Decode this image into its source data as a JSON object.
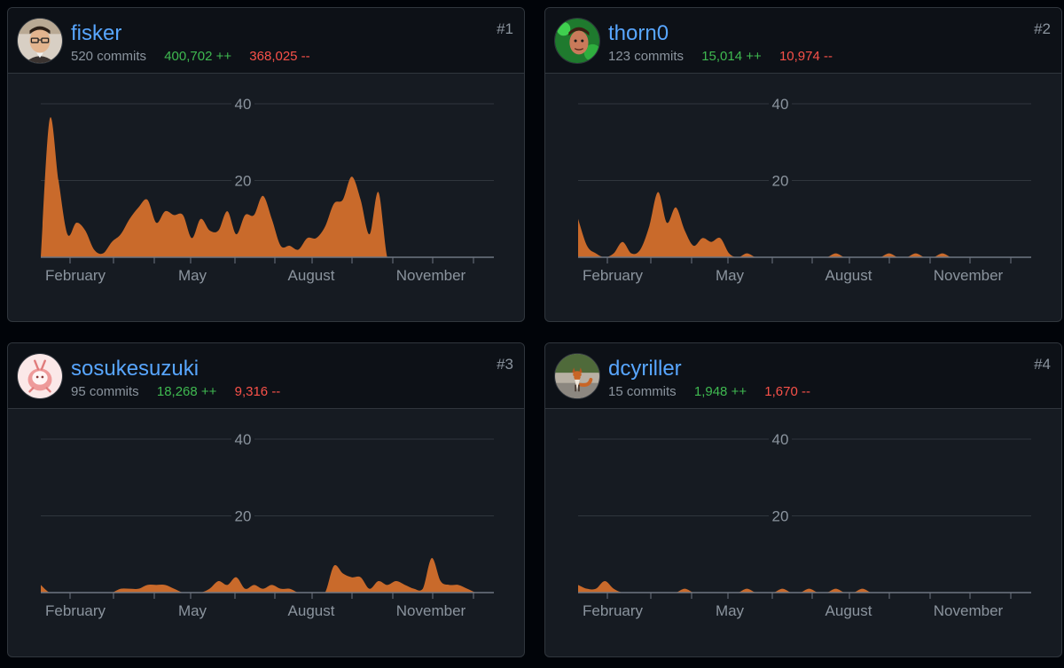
{
  "colors": {
    "accent": "#58a6ff",
    "additions": "#3fb950",
    "deletions": "#f85149",
    "area": "#c96a2b",
    "grid": "#30363d"
  },
  "contributors": [
    {
      "rank": "#1",
      "username": "fisker",
      "commits": "520 commits",
      "additions": "400,702 ++",
      "deletions": "368,025 --",
      "avatar": "man-with-glasses-avatar",
      "chart_data": {
        "type": "area",
        "x_labels": [
          "February",
          "May",
          "August",
          "November"
        ],
        "y_ticks": [
          20,
          40
        ],
        "ylim": [
          0,
          40
        ],
        "x": [
          0,
          1,
          2,
          3,
          4,
          5,
          6,
          7,
          8,
          9,
          10,
          11,
          12,
          13,
          14,
          15,
          16,
          17,
          18,
          19,
          20,
          21,
          22,
          23,
          24,
          25,
          26,
          27,
          28,
          29,
          30,
          31,
          32,
          33,
          34,
          35,
          36,
          37,
          38,
          39,
          40,
          41,
          42,
          43,
          44,
          45,
          46,
          47,
          48,
          49,
          50,
          51
        ],
        "values": [
          0,
          36,
          20,
          6,
          9,
          7,
          2,
          1,
          4,
          6,
          10,
          13,
          15,
          9,
          12,
          11,
          11,
          5,
          10,
          7,
          7,
          12,
          6,
          11,
          11,
          16,
          10,
          3,
          3,
          2,
          5,
          5,
          8,
          14,
          15,
          21,
          15,
          6,
          17,
          0,
          0,
          0,
          0,
          0,
          0,
          0,
          0,
          0,
          0,
          0,
          0,
          0
        ]
      }
    },
    {
      "rank": "#2",
      "username": "thorn0",
      "commits": "123 commits",
      "additions": "15,014 ++",
      "deletions": "10,974 --",
      "avatar": "green-face-avatar",
      "chart_data": {
        "type": "area",
        "x_labels": [
          "February",
          "May",
          "August",
          "November"
        ],
        "y_ticks": [
          20,
          40
        ],
        "ylim": [
          0,
          40
        ],
        "x": [
          0,
          1,
          2,
          3,
          4,
          5,
          6,
          7,
          8,
          9,
          10,
          11,
          12,
          13,
          14,
          15,
          16,
          17,
          18,
          19,
          20,
          21,
          22,
          23,
          24,
          25,
          26,
          27,
          28,
          29,
          30,
          31,
          32,
          33,
          34,
          35,
          36,
          37,
          38,
          39,
          40,
          41,
          42,
          43,
          44,
          45,
          46,
          47,
          48,
          49,
          50,
          51
        ],
        "values": [
          10,
          3,
          1,
          0,
          1,
          4,
          1,
          2,
          8,
          17,
          9,
          13,
          7,
          3,
          5,
          4,
          5,
          1,
          0,
          1,
          0,
          0,
          0,
          0,
          0,
          0,
          0,
          0,
          0,
          1,
          0,
          0,
          0,
          0,
          0,
          1,
          0,
          0,
          1,
          0,
          0,
          1,
          0,
          0,
          0,
          0,
          0,
          0,
          0,
          0,
          0,
          0
        ]
      }
    },
    {
      "rank": "#3",
      "username": "sosukesuzuki",
      "commits": "95 commits",
      "additions": "18,268 ++",
      "deletions": "9,316 --",
      "avatar": "pink-cartoon-avatar",
      "chart_data": {
        "type": "area",
        "x_labels": [
          "February",
          "May",
          "August",
          "November"
        ],
        "y_ticks": [
          20,
          40
        ],
        "ylim": [
          0,
          40
        ],
        "x": [
          0,
          1,
          2,
          3,
          4,
          5,
          6,
          7,
          8,
          9,
          10,
          11,
          12,
          13,
          14,
          15,
          16,
          17,
          18,
          19,
          20,
          21,
          22,
          23,
          24,
          25,
          26,
          27,
          28,
          29,
          30,
          31,
          32,
          33,
          34,
          35,
          36,
          37,
          38,
          39,
          40,
          41,
          42,
          43,
          44,
          45,
          46,
          47,
          48,
          49,
          50,
          51
        ],
        "values": [
          2,
          0,
          0,
          0,
          0,
          0,
          0,
          0,
          0,
          1,
          1,
          1,
          2,
          2,
          2,
          1,
          0,
          0,
          0,
          1,
          3,
          2,
          4,
          1,
          2,
          1,
          2,
          1,
          1,
          0,
          0,
          0,
          0,
          7,
          5,
          4,
          4,
          1,
          3,
          2,
          3,
          2,
          1,
          1,
          9,
          3,
          2,
          2,
          1,
          0,
          0,
          0
        ]
      }
    },
    {
      "rank": "#4",
      "username": "dcyriller",
      "commits": "15 commits",
      "additions": "1,948 ++",
      "deletions": "1,670 --",
      "avatar": "fox-avatar",
      "chart_data": {
        "type": "area",
        "x_labels": [
          "February",
          "May",
          "August",
          "November"
        ],
        "y_ticks": [
          20,
          40
        ],
        "ylim": [
          0,
          40
        ],
        "x": [
          0,
          1,
          2,
          3,
          4,
          5,
          6,
          7,
          8,
          9,
          10,
          11,
          12,
          13,
          14,
          15,
          16,
          17,
          18,
          19,
          20,
          21,
          22,
          23,
          24,
          25,
          26,
          27,
          28,
          29,
          30,
          31,
          32,
          33,
          34,
          35,
          36,
          37,
          38,
          39,
          40,
          41,
          42,
          43,
          44,
          45,
          46,
          47,
          48,
          49,
          50,
          51
        ],
        "values": [
          2,
          1,
          1,
          3,
          1,
          0,
          0,
          0,
          0,
          0,
          0,
          0,
          1,
          0,
          0,
          0,
          0,
          0,
          0,
          1,
          0,
          0,
          0,
          1,
          0,
          0,
          1,
          0,
          0,
          1,
          0,
          0,
          1,
          0,
          0,
          0,
          0,
          0,
          0,
          0,
          0,
          0,
          0,
          0,
          0,
          0,
          0,
          0,
          0,
          0,
          0,
          0
        ]
      }
    }
  ]
}
